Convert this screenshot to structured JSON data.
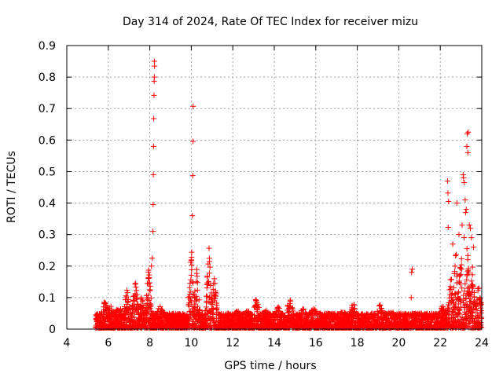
{
  "chart_data": {
    "type": "scatter",
    "title": "Day 314 of 2024, Rate Of TEC Index for receiver mizu",
    "xlabel": "GPS time / hours",
    "ylabel": "ROTI / TECUs",
    "xlim": [
      4,
      24
    ],
    "ylim": [
      0,
      0.9
    ],
    "xticks": [
      "4",
      "6",
      "8",
      "10",
      "12",
      "14",
      "16",
      "18",
      "20",
      "22",
      "24"
    ],
    "yticks": [
      "0",
      "0.1",
      "0.2",
      "0.3",
      "0.4",
      "0.5",
      "0.6",
      "0.7",
      "0.8",
      "0.9"
    ],
    "grid": true,
    "marker": "plus",
    "colors": {
      "series": "#ff0000"
    },
    "baseline": {
      "x_start": 5.4,
      "x_end": 24.0,
      "typical_max": 0.05
    },
    "bursts": [
      [
        5.85,
        0.1
      ],
      [
        6.1,
        0.08
      ],
      [
        6.5,
        0.08
      ],
      [
        6.9,
        0.13
      ],
      [
        7.3,
        0.17
      ],
      [
        7.6,
        0.12
      ],
      [
        7.95,
        0.2
      ],
      [
        8.5,
        0.08
      ],
      [
        9.0,
        0.05
      ],
      [
        9.5,
        0.04
      ],
      [
        10.0,
        0.27
      ],
      [
        10.25,
        0.2
      ],
      [
        10.85,
        0.27
      ],
      [
        11.1,
        0.18
      ],
      [
        11.6,
        0.05
      ],
      [
        12.2,
        0.06
      ],
      [
        12.7,
        0.06
      ],
      [
        13.15,
        0.11
      ],
      [
        13.6,
        0.06
      ],
      [
        14.2,
        0.08
      ],
      [
        14.75,
        0.11
      ],
      [
        15.4,
        0.07
      ],
      [
        15.9,
        0.07
      ],
      [
        16.7,
        0.05
      ],
      [
        17.3,
        0.06
      ],
      [
        17.8,
        0.09
      ],
      [
        18.4,
        0.05
      ],
      [
        19.1,
        0.08
      ],
      [
        19.6,
        0.06
      ],
      [
        20.2,
        0.05
      ],
      [
        21.1,
        0.05
      ],
      [
        21.6,
        0.05
      ],
      [
        22.1,
        0.08
      ],
      [
        22.5,
        0.2
      ],
      [
        22.75,
        0.25
      ],
      [
        23.0,
        0.25
      ],
      [
        23.3,
        0.28
      ],
      [
        23.55,
        0.2
      ],
      [
        23.85,
        0.15
      ]
    ],
    "outliers": [
      [
        8.08,
        0.2
      ],
      [
        8.12,
        0.225
      ],
      [
        8.15,
        0.31
      ],
      [
        8.16,
        0.395
      ],
      [
        8.17,
        0.49
      ],
      [
        8.18,
        0.58
      ],
      [
        8.19,
        0.668
      ],
      [
        8.2,
        0.742
      ],
      [
        8.21,
        0.787
      ],
      [
        8.22,
        0.8
      ],
      [
        8.23,
        0.835
      ],
      [
        8.22,
        0.85
      ],
      [
        10.05,
        0.36
      ],
      [
        10.07,
        0.487
      ],
      [
        10.08,
        0.596
      ],
      [
        10.09,
        0.707
      ],
      [
        20.6,
        0.1
      ],
      [
        20.62,
        0.18
      ],
      [
        20.65,
        0.19
      ],
      [
        22.35,
        0.47
      ],
      [
        22.37,
        0.432
      ],
      [
        22.4,
        0.405
      ],
      [
        22.38,
        0.323
      ],
      [
        22.8,
        0.4
      ],
      [
        23.1,
        0.49
      ],
      [
        23.12,
        0.48
      ],
      [
        23.15,
        0.465
      ],
      [
        23.2,
        0.41
      ],
      [
        23.22,
        0.37
      ],
      [
        23.25,
        0.38
      ],
      [
        23.28,
        0.58
      ],
      [
        23.3,
        0.62
      ],
      [
        23.35,
        0.625
      ],
      [
        23.33,
        0.56
      ],
      [
        23.4,
        0.33
      ],
      [
        23.45,
        0.32
      ],
      [
        23.5,
        0.29
      ],
      [
        23.6,
        0.26
      ],
      [
        22.9,
        0.3
      ],
      [
        23.05,
        0.33
      ],
      [
        23.15,
        0.29
      ],
      [
        22.6,
        0.27
      ]
    ]
  }
}
